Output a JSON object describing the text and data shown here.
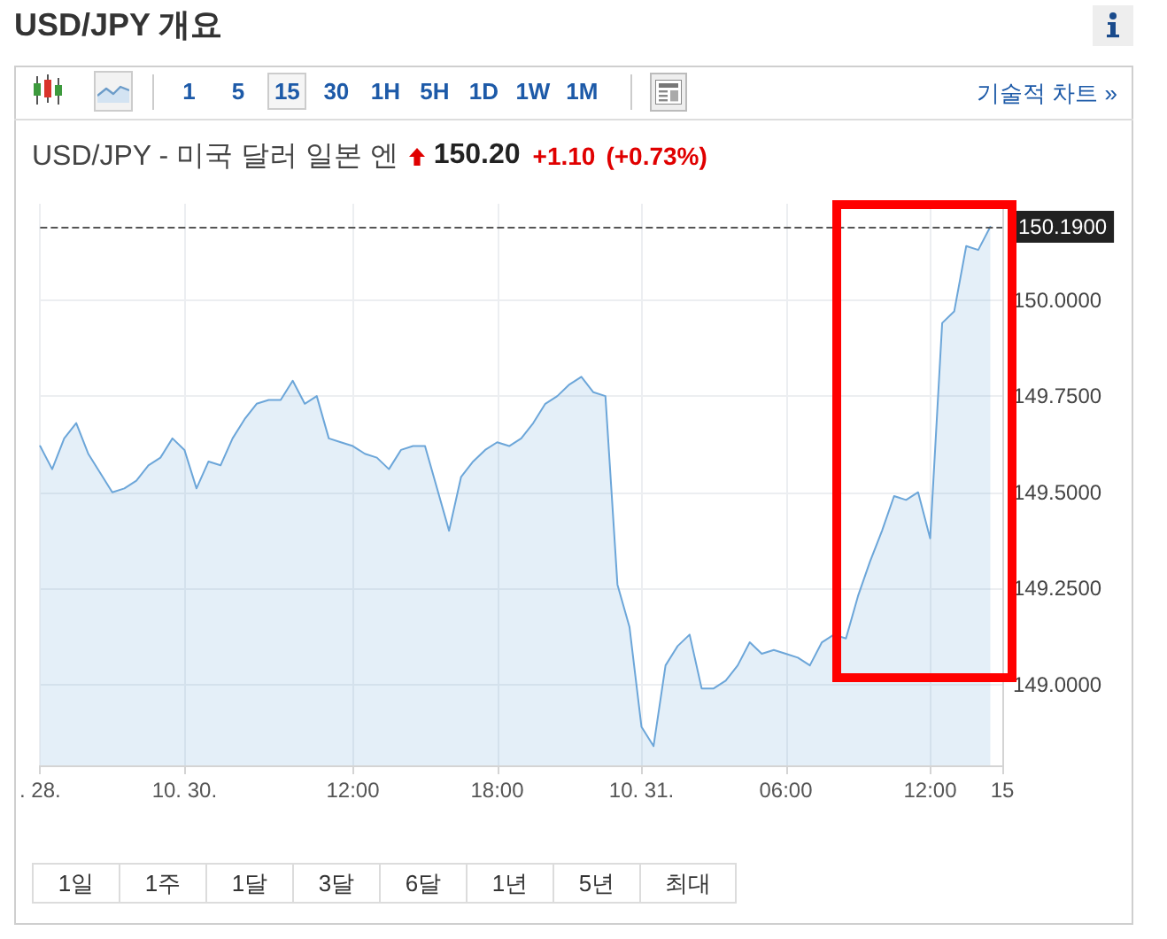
{
  "chart_data": {
    "type": "area",
    "title": "USD/JPY 개요",
    "subtitle": "USD/JPY - 미국 달러 일본 엔",
    "annotations": [
      "150.20",
      "+1.10",
      "(+0.73%)",
      "1",
      "5",
      "15",
      "30",
      "1H",
      "5H",
      "1D",
      "1W",
      "1M",
      "기술적 차트 »",
      "1일",
      "1주",
      "1달",
      "3달",
      "6달",
      "1년",
      "5년",
      "최대"
    ],
    "categories": [
      ". 28.",
      null,
      null,
      null,
      null,
      null,
      null,
      null,
      null,
      null,
      null,
      null,
      "10. 30.",
      null,
      null,
      null,
      null,
      null,
      null,
      null,
      null,
      null,
      null,
      null,
      null,
      null,
      "12:00",
      null,
      null,
      null,
      null,
      null,
      null,
      null,
      null,
      null,
      null,
      null,
      "18:00",
      null,
      null,
      null,
      null,
      null,
      null,
      null,
      null,
      null,
      null,
      null,
      "10. 31.",
      null,
      null,
      null,
      null,
      null,
      null,
      null,
      null,
      null,
      null,
      null,
      "06:00",
      null,
      null,
      null,
      null,
      null,
      null,
      null,
      null,
      null,
      null,
      null,
      "12:00",
      null,
      null,
      null,
      null,
      null,
      "15"
    ],
    "values": [
      149.62,
      149.56,
      149.64,
      149.68,
      149.6,
      149.55,
      149.5,
      149.51,
      149.53,
      149.57,
      149.59,
      149.64,
      149.61,
      149.51,
      149.58,
      149.57,
      149.64,
      149.69,
      149.73,
      149.74,
      149.74,
      149.79,
      149.73,
      149.75,
      149.64,
      149.63,
      149.62,
      149.6,
      149.59,
      149.56,
      149.61,
      149.62,
      149.62,
      149.51,
      149.4,
      149.54,
      149.58,
      149.61,
      149.63,
      149.62,
      149.64,
      149.68,
      149.73,
      149.75,
      149.78,
      149.8,
      149.76,
      149.75,
      149.26,
      149.15,
      148.89,
      148.84,
      149.05,
      149.1,
      149.13,
      148.99,
      148.99,
      149.01,
      149.05,
      149.11,
      149.08,
      149.09,
      149.08,
      149.07,
      149.05,
      149.11,
      149.13,
      149.12,
      149.23,
      149.32,
      149.4,
      149.49,
      149.48,
      149.5,
      149.38,
      149.94,
      149.97,
      150.14,
      150.13,
      150.19,
      null
    ],
    "color": "#6ca6d9",
    "ylim": [
      148.79,
      150.25
    ],
    "yticks": [
      {
        "value": 149,
        "label": "149.0000"
      },
      {
        "value": 149.25,
        "label": "149.2500"
      },
      {
        "value": 149.5,
        "label": "149.5000"
      },
      {
        "value": 149.75,
        "label": "149.7500"
      },
      {
        "value": 150,
        "label": "150.0000"
      }
    ],
    "ref_lines": [
      {
        "axis": "y",
        "value": 150.19,
        "label": "150.1900",
        "color": "#555555",
        "line_style": "dashed"
      }
    ],
    "grid": true,
    "marker": "none",
    "line_style": "solid"
  }
}
